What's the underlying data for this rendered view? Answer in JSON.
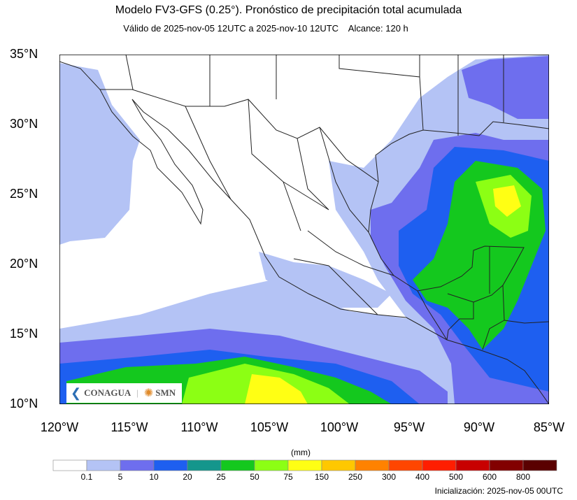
{
  "title": "Modelo FV3-GFS (0.25°). Pronóstico de precipitación total acumulada",
  "subtitle": "Válido de 2025-nov-05 12UTC a 2025-nov-10 12UTC    Alcance: 120 h",
  "map": {
    "lon_range": [
      -120,
      -85
    ],
    "lat_range": [
      10,
      35
    ],
    "lat_labels": [
      "35°N",
      "30°N",
      "25°N",
      "20°N",
      "15°N",
      "10°N"
    ],
    "lon_labels": [
      "120°W",
      "115°W",
      "110°W",
      "105°W",
      "100°W",
      "95°W",
      "90°W",
      "85°W"
    ]
  },
  "colorbar": {
    "units": "(mm)",
    "labels": [
      "0.1",
      "5",
      "10",
      "20",
      "25",
      "50",
      "75",
      "150",
      "250",
      "300",
      "400",
      "500",
      "600",
      "800"
    ],
    "colors": [
      "#ffffff",
      "#b4c3f5",
      "#6e6eee",
      "#1e5ff0",
      "#14968c",
      "#14c81e",
      "#8cff14",
      "#ffff14",
      "#ffc800",
      "#ff8200",
      "#ff4600",
      "#ff1e00",
      "#c80000",
      "#820000",
      "#5a0000"
    ]
  },
  "logos": {
    "conagua": "CONAGUA",
    "smn": "SMN"
  },
  "init": "Inicialización: 2025-nov-05 00UTC"
}
